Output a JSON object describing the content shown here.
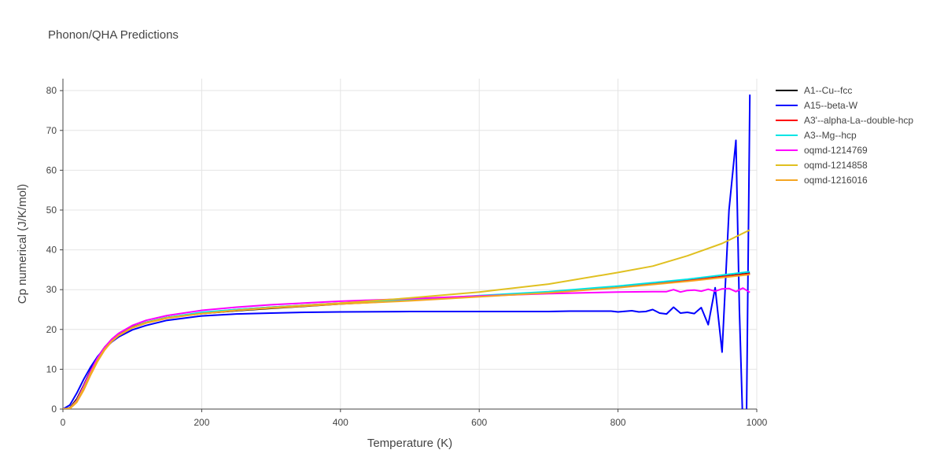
{
  "chart_data": {
    "type": "line",
    "title": "Phonon/QHA Predictions",
    "xlabel": "Temperature (K)",
    "ylabel": "Cp numerical (J/K/mol)",
    "xlim": [
      0,
      1000
    ],
    "ylim": [
      0,
      83
    ],
    "xticks": [
      0,
      200,
      400,
      600,
      800,
      1000
    ],
    "yticks": [
      0,
      10,
      20,
      30,
      40,
      50,
      60,
      70,
      80
    ],
    "grid": true,
    "legend_position": "right",
    "series": [
      {
        "name": "A1--Cu--fcc",
        "color": "#000000",
        "points": [
          [
            0,
            0
          ],
          [
            10,
            0.3
          ],
          [
            20,
            2.5
          ],
          [
            30,
            6
          ],
          [
            40,
            9.8
          ],
          [
            50,
            13
          ],
          [
            60,
            15.5
          ],
          [
            70,
            17.4
          ],
          [
            80,
            18.8
          ],
          [
            100,
            20.6
          ],
          [
            120,
            21.8
          ],
          [
            150,
            23
          ],
          [
            200,
            24
          ],
          [
            250,
            24.7
          ],
          [
            300,
            25.3
          ],
          [
            400,
            26.4
          ],
          [
            500,
            27.3
          ],
          [
            600,
            28.3
          ],
          [
            700,
            29.3
          ],
          [
            800,
            30.7
          ],
          [
            900,
            32.3
          ],
          [
            990,
            34.1
          ]
        ]
      },
      {
        "name": "A15--beta-W",
        "color": "#0000ff",
        "points": [
          [
            0,
            0
          ],
          [
            10,
            1
          ],
          [
            20,
            4
          ],
          [
            30,
            7.5
          ],
          [
            40,
            10.6
          ],
          [
            50,
            13.2
          ],
          [
            60,
            15.2
          ],
          [
            70,
            16.8
          ],
          [
            80,
            18.1
          ],
          [
            100,
            19.9
          ],
          [
            120,
            21
          ],
          [
            150,
            22.3
          ],
          [
            200,
            23.4
          ],
          [
            250,
            23.9
          ],
          [
            300,
            24.1
          ],
          [
            350,
            24.3
          ],
          [
            400,
            24.4
          ],
          [
            500,
            24.5
          ],
          [
            600,
            24.5
          ],
          [
            660,
            24.5
          ],
          [
            700,
            24.5
          ],
          [
            730,
            24.6
          ],
          [
            790,
            24.6
          ],
          [
            800,
            24.4
          ],
          [
            820,
            24.7
          ],
          [
            830,
            24.4
          ],
          [
            840,
            24.5
          ],
          [
            850,
            25
          ],
          [
            860,
            24.1
          ],
          [
            870,
            23.9
          ],
          [
            880,
            25.6
          ],
          [
            890,
            24.1
          ],
          [
            900,
            24.3
          ],
          [
            910,
            24
          ],
          [
            920,
            25.5
          ],
          [
            930,
            21.2
          ],
          [
            940,
            30.5
          ],
          [
            950,
            14.3
          ],
          [
            960,
            50
          ],
          [
            970,
            67.5
          ],
          [
            975,
            25
          ],
          [
            980,
            -5
          ],
          [
            985,
            -5
          ],
          [
            990,
            79
          ]
        ]
      },
      {
        "name": "A3'--alpha-La--double-hcp",
        "color": "#ff0000",
        "points": [
          [
            0,
            0
          ],
          [
            10,
            0.2
          ],
          [
            20,
            2
          ],
          [
            30,
            5.3
          ],
          [
            40,
            9
          ],
          [
            50,
            12.3
          ],
          [
            60,
            15
          ],
          [
            70,
            17
          ],
          [
            80,
            18.5
          ],
          [
            100,
            20.5
          ],
          [
            120,
            21.8
          ],
          [
            150,
            23
          ],
          [
            200,
            24.2
          ],
          [
            250,
            25
          ],
          [
            300,
            25.6
          ],
          [
            400,
            26.6
          ],
          [
            500,
            27.4
          ],
          [
            600,
            28.4
          ],
          [
            700,
            29.4
          ],
          [
            800,
            30.7
          ],
          [
            900,
            32.3
          ],
          [
            990,
            34
          ]
        ]
      },
      {
        "name": "A3--Mg--hcp",
        "color": "#00e5e5",
        "points": [
          [
            0,
            0
          ],
          [
            10,
            0.2
          ],
          [
            20,
            2
          ],
          [
            30,
            5.3
          ],
          [
            40,
            9
          ],
          [
            50,
            12.3
          ],
          [
            60,
            15
          ],
          [
            70,
            17
          ],
          [
            80,
            18.5
          ],
          [
            100,
            20.5
          ],
          [
            120,
            21.8
          ],
          [
            150,
            23
          ],
          [
            200,
            24.3
          ],
          [
            250,
            25
          ],
          [
            300,
            25.6
          ],
          [
            400,
            26.6
          ],
          [
            500,
            27.4
          ],
          [
            600,
            28.5
          ],
          [
            700,
            29.5
          ],
          [
            800,
            30.9
          ],
          [
            900,
            32.6
          ],
          [
            990,
            34.5
          ]
        ]
      },
      {
        "name": "oqmd-1214769",
        "color": "#ff00ff",
        "points": [
          [
            0,
            0
          ],
          [
            10,
            0.2
          ],
          [
            20,
            2.2
          ],
          [
            30,
            5.8
          ],
          [
            40,
            9.6
          ],
          [
            50,
            12.9
          ],
          [
            60,
            15.5
          ],
          [
            70,
            17.5
          ],
          [
            80,
            19
          ],
          [
            100,
            21
          ],
          [
            120,
            22.3
          ],
          [
            150,
            23.5
          ],
          [
            200,
            24.8
          ],
          [
            250,
            25.6
          ],
          [
            300,
            26.2
          ],
          [
            400,
            27.1
          ],
          [
            500,
            27.7
          ],
          [
            600,
            28.4
          ],
          [
            700,
            29
          ],
          [
            800,
            29.4
          ],
          [
            850,
            29.5
          ],
          [
            870,
            29.5
          ],
          [
            880,
            30
          ],
          [
            890,
            29.4
          ],
          [
            900,
            29.8
          ],
          [
            910,
            29.9
          ],
          [
            920,
            29.6
          ],
          [
            930,
            30.1
          ],
          [
            940,
            29.6
          ],
          [
            950,
            30.2
          ],
          [
            960,
            30.3
          ],
          [
            970,
            29.5
          ],
          [
            980,
            30.4
          ],
          [
            990,
            29.3
          ]
        ]
      },
      {
        "name": "oqmd-1214858",
        "color": "#e0c020",
        "points": [
          [
            0,
            0
          ],
          [
            10,
            0.2
          ],
          [
            20,
            2
          ],
          [
            30,
            5.3
          ],
          [
            40,
            9
          ],
          [
            50,
            12.3
          ],
          [
            60,
            15
          ],
          [
            70,
            17
          ],
          [
            80,
            18.5
          ],
          [
            100,
            20.5
          ],
          [
            120,
            21.7
          ],
          [
            150,
            22.9
          ],
          [
            200,
            24
          ],
          [
            250,
            24.8
          ],
          [
            300,
            25.5
          ],
          [
            400,
            26.6
          ],
          [
            500,
            27.9
          ],
          [
            600,
            29.4
          ],
          [
            700,
            31.4
          ],
          [
            800,
            34.3
          ],
          [
            850,
            35.9
          ],
          [
            900,
            38.5
          ],
          [
            950,
            41.6
          ],
          [
            990,
            45
          ]
        ]
      },
      {
        "name": "oqmd-1216016",
        "color": "#f5a623",
        "points": [
          [
            0,
            0
          ],
          [
            10,
            0.1
          ],
          [
            20,
            1.7
          ],
          [
            30,
            4.8
          ],
          [
            40,
            8.6
          ],
          [
            50,
            12
          ],
          [
            60,
            14.8
          ],
          [
            70,
            16.9
          ],
          [
            80,
            18.4
          ],
          [
            100,
            20.4
          ],
          [
            120,
            21.6
          ],
          [
            150,
            22.8
          ],
          [
            200,
            24
          ],
          [
            250,
            24.8
          ],
          [
            300,
            25.4
          ],
          [
            400,
            26.4
          ],
          [
            500,
            27.2
          ],
          [
            600,
            28.2
          ],
          [
            700,
            29.2
          ],
          [
            800,
            30.5
          ],
          [
            900,
            32.1
          ],
          [
            990,
            33.8
          ]
        ]
      }
    ]
  }
}
